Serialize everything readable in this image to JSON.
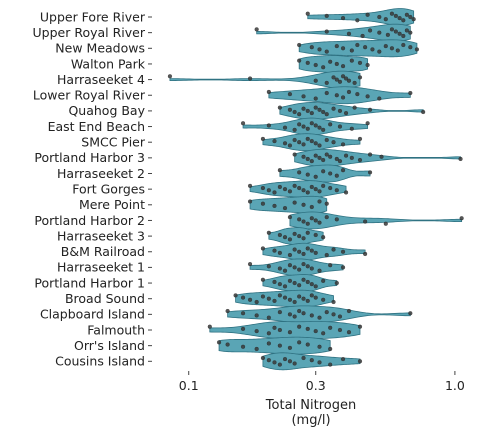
{
  "chart_data": {
    "type": "violin",
    "title": "",
    "xlabel": "Total Nitrogen",
    "xlabel_unit": "(mg/l)",
    "ylabel": "",
    "x_scale": "log",
    "xlim": [
      0.078,
      1.12
    ],
    "x_ticks": [
      0.1,
      0.3,
      1.0
    ],
    "x_tick_labels": [
      "0.1",
      "0.3",
      "1.0"
    ],
    "grid": false,
    "legend": "none",
    "colors": {
      "violin_fill": "#5aa5b5",
      "violin_stroke": "#2f7282",
      "points": "#3a3a3a"
    },
    "categories": [
      "Upper Fore River",
      "Upper Royal River",
      "New Meadows",
      "Walton Park",
      "Harraseeket 4",
      "Lower Royal River",
      "Quahog Bay",
      "East End Beach",
      "SMCC Pier",
      "Portland Harbor 3",
      "Harraseeket 2",
      "Fort Gorges",
      "Mere Point",
      "Portland Harbor 2",
      "Harraseeket 3",
      "B&M Railroad",
      "Harraseeket 1",
      "Portland Harbor 1",
      "Broad Sound",
      "Clapboard Island",
      "Falmouth",
      "Orr's Island",
      "Cousins Island"
    ],
    "series": [
      {
        "site": "Upper Fore River",
        "values": [
          0.28,
          0.33,
          0.38,
          0.43,
          0.47,
          0.52,
          0.55,
          0.58,
          0.6,
          0.62,
          0.64,
          0.66,
          0.68,
          0.7
        ]
      },
      {
        "site": "Upper Royal River",
        "values": [
          0.18,
          0.33,
          0.4,
          0.45,
          0.48,
          0.52,
          0.56,
          0.58,
          0.6,
          0.62,
          0.64,
          0.66,
          0.68
        ]
      },
      {
        "site": "New Meadows",
        "values": [
          0.26,
          0.29,
          0.31,
          0.33,
          0.36,
          0.38,
          0.41,
          0.43,
          0.46,
          0.49,
          0.52,
          0.55,
          0.58,
          0.61,
          0.64,
          0.68,
          0.72
        ]
      },
      {
        "site": "Walton Park",
        "values": [
          0.26,
          0.28,
          0.3,
          0.32,
          0.34,
          0.36,
          0.38,
          0.41,
          0.44,
          0.47
        ]
      },
      {
        "site": "Harraseeket 4",
        "values": [
          0.085,
          0.17,
          0.3,
          0.33,
          0.35,
          0.36,
          0.37,
          0.38,
          0.39,
          0.4,
          0.42,
          0.44
        ]
      },
      {
        "site": "Lower Royal River",
        "values": [
          0.2,
          0.24,
          0.27,
          0.3,
          0.33,
          0.36,
          0.38,
          0.4,
          0.43,
          0.47,
          0.52,
          0.68
        ]
      },
      {
        "site": "Quahog Bay",
        "values": [
          0.22,
          0.24,
          0.25,
          0.26,
          0.27,
          0.28,
          0.29,
          0.3,
          0.31,
          0.32,
          0.33,
          0.35,
          0.37,
          0.39,
          0.42,
          0.48,
          0.76
        ]
      },
      {
        "site": "East End Beach",
        "values": [
          0.16,
          0.2,
          0.23,
          0.25,
          0.26,
          0.27,
          0.28,
          0.29,
          0.3,
          0.31,
          0.32,
          0.34,
          0.37,
          0.41,
          0.47
        ]
      },
      {
        "site": "SMCC Pier",
        "values": [
          0.19,
          0.21,
          0.23,
          0.24,
          0.25,
          0.26,
          0.27,
          0.28,
          0.29,
          0.3,
          0.31,
          0.33,
          0.35,
          0.38,
          0.44
        ]
      },
      {
        "site": "Portland Harbor 3",
        "values": [
          0.25,
          0.27,
          0.28,
          0.29,
          0.3,
          0.31,
          0.32,
          0.33,
          0.34,
          0.36,
          0.37,
          0.39,
          0.41,
          0.44,
          0.48,
          0.53,
          1.05
        ]
      },
      {
        "site": "Harraseeket 2",
        "values": [
          0.22,
          0.26,
          0.28,
          0.3,
          0.32,
          0.34,
          0.36,
          0.38,
          0.48
        ]
      },
      {
        "site": "Fort Gorges",
        "values": [
          0.17,
          0.19,
          0.2,
          0.21,
          0.22,
          0.23,
          0.24,
          0.25,
          0.26,
          0.27,
          0.28,
          0.29,
          0.3,
          0.31,
          0.32,
          0.34,
          0.36,
          0.39
        ]
      },
      {
        "site": "Mere Point",
        "values": [
          0.17,
          0.19,
          0.21,
          0.23,
          0.25,
          0.27,
          0.29,
          0.31,
          0.33
        ]
      },
      {
        "site": "Portland Harbor 2",
        "values": [
          0.24,
          0.26,
          0.27,
          0.28,
          0.29,
          0.3,
          0.31,
          0.33,
          0.36,
          0.46,
          0.55,
          1.06
        ]
      },
      {
        "site": "Harraseeket 3",
        "values": [
          0.2,
          0.22,
          0.23,
          0.24,
          0.25,
          0.26,
          0.27,
          0.28,
          0.3,
          0.32
        ]
      },
      {
        "site": "B&M Railroad",
        "values": [
          0.19,
          0.21,
          0.22,
          0.24,
          0.25,
          0.26,
          0.27,
          0.28,
          0.29,
          0.3,
          0.33,
          0.35,
          0.38,
          0.46
        ]
      },
      {
        "site": "Harraseeket 1",
        "values": [
          0.17,
          0.2,
          0.22,
          0.23,
          0.24,
          0.25,
          0.26,
          0.27,
          0.28,
          0.29,
          0.31,
          0.34,
          0.38
        ]
      },
      {
        "site": "Portland Harbor 1",
        "values": [
          0.19,
          0.21,
          0.22,
          0.23,
          0.24,
          0.25,
          0.26,
          0.27,
          0.28,
          0.29,
          0.3,
          0.32,
          0.36
        ]
      },
      {
        "site": "Broad Sound",
        "values": [
          0.15,
          0.16,
          0.17,
          0.18,
          0.19,
          0.2,
          0.21,
          0.22,
          0.23,
          0.24,
          0.25,
          0.26,
          0.27,
          0.28,
          0.29,
          0.3,
          0.32,
          0.35
        ]
      },
      {
        "site": "Clapboard Island",
        "values": [
          0.14,
          0.16,
          0.18,
          0.2,
          0.22,
          0.24,
          0.25,
          0.26,
          0.27,
          0.29,
          0.31,
          0.33,
          0.35,
          0.37,
          0.4,
          0.68
        ]
      },
      {
        "site": "Falmouth",
        "values": [
          0.12,
          0.16,
          0.18,
          0.2,
          0.21,
          0.22,
          0.24,
          0.26,
          0.28,
          0.3,
          0.32,
          0.34,
          0.37,
          0.4,
          0.44
        ]
      },
      {
        "site": "Orr's Island",
        "values": [
          0.13,
          0.14,
          0.16,
          0.18,
          0.2,
          0.22,
          0.24,
          0.26,
          0.28,
          0.31,
          0.34
        ]
      },
      {
        "site": "Cousins Island",
        "values": [
          0.19,
          0.2,
          0.21,
          0.22,
          0.23,
          0.24,
          0.25,
          0.27,
          0.29,
          0.31,
          0.34,
          0.38,
          0.44
        ]
      }
    ]
  }
}
